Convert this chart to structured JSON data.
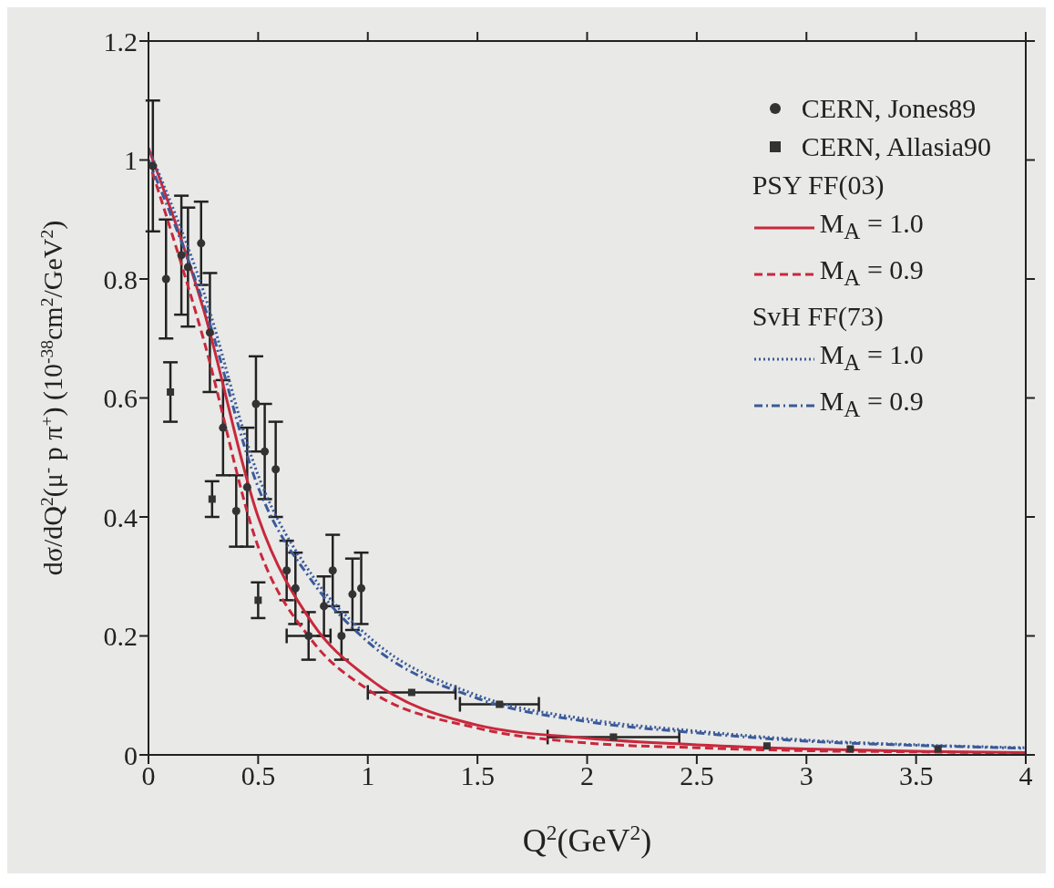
{
  "chart_data": {
    "type": "scatter",
    "xlabel": "Q$^{2}$(GeV$^{2}$)",
    "ylabel": "dσ/dQ$^{2}$(μ$^{-}$ p π$^{+}$) (10$^{-38}$cm$^{2}$/GeV$^{2}$)",
    "xlim": [
      0,
      4
    ],
    "xticks": [
      0,
      0.5,
      1,
      1.5,
      2,
      2.5,
      3,
      3.5,
      4
    ],
    "ylim": [
      0,
      1.2
    ],
    "yticks": [
      0,
      0.2,
      0.4,
      0.6,
      0.8,
      1,
      1.2
    ],
    "legend": "top right",
    "annotations": [
      "PSY FF(03)",
      "SvH FF(73)"
    ],
    "series": [
      {
        "name": "CERN, Jones89",
        "marker": "circle",
        "color": "#333333",
        "x": [
          0.02,
          0.08,
          0.15,
          0.18,
          0.24,
          0.28,
          0.34,
          0.4,
          0.45,
          0.49,
          0.53,
          0.58,
          0.63,
          0.67,
          0.73,
          0.8,
          0.84,
          0.88,
          0.93,
          0.97
        ],
        "values": [
          0.99,
          0.8,
          0.84,
          0.82,
          0.86,
          0.71,
          0.55,
          0.41,
          0.45,
          0.59,
          0.51,
          0.48,
          0.31,
          0.28,
          0.2,
          0.25,
          0.31,
          0.2,
          0.27,
          0.28
        ],
        "errors": [
          0.11,
          0.1,
          0.1,
          0.1,
          0.07,
          0.1,
          0.08,
          0.06,
          0.1,
          0.08,
          0.08,
          0.08,
          0.05,
          0.06,
          0.04,
          0.05,
          0.06,
          0.04,
          0.06,
          0.06
        ],
        "xerrors": [
          null,
          null,
          null,
          null,
          null,
          null,
          null,
          null,
          null,
          null,
          null,
          null,
          null,
          null,
          0.1,
          null,
          null,
          null,
          null,
          null
        ]
      },
      {
        "name": "CERN, Allasia90",
        "marker": "square",
        "color": "#333333",
        "x": [
          0.1,
          0.29,
          0.5,
          1.2,
          1.6,
          2.12,
          2.82,
          3.2,
          3.6
        ],
        "values": [
          0.61,
          0.43,
          0.26,
          0.105,
          0.085,
          0.03,
          0.015,
          0.01,
          0.01
        ],
        "errors": [
          0.05,
          0.03,
          0.03,
          null,
          null,
          null,
          null,
          null,
          null
        ],
        "xerrors": [
          null,
          null,
          null,
          0.2,
          0.18,
          0.3,
          null,
          null,
          null
        ]
      },
      {
        "name": "M$_{A}$ = 1.0",
        "type": "line",
        "line_style": "solid",
        "color": "#c8283c",
        "x": [
          0,
          0.25,
          0.5,
          0.75,
          1,
          1.5,
          2,
          2.5,
          3,
          3.5,
          4
        ],
        "values": [
          1.02,
          0.75,
          0.4,
          0.22,
          0.13,
          0.05,
          0.028,
          0.017,
          0.01,
          0.006,
          0.004
        ]
      },
      {
        "name": "M$_{A}$ = 0.9",
        "type": "line",
        "line_style": "dashed",
        "color": "#c8283c",
        "x": [
          0,
          0.25,
          0.5,
          0.75,
          1,
          1.5,
          2,
          2.5,
          3,
          3.5,
          4
        ],
        "values": [
          1.0,
          0.7,
          0.35,
          0.19,
          0.11,
          0.045,
          0.02,
          0.012,
          0.007,
          0.005,
          0.003
        ]
      },
      {
        "name": "M$_{A}$ = 1.0",
        "type": "line",
        "line_style": "dotted",
        "color": "#3a5a9a",
        "x": [
          0,
          0.25,
          0.5,
          0.75,
          1,
          1.5,
          2,
          2.5,
          3,
          3.5,
          4
        ],
        "values": [
          1.02,
          0.78,
          0.47,
          0.3,
          0.2,
          0.1,
          0.06,
          0.04,
          0.025,
          0.017,
          0.012
        ]
      },
      {
        "name": "M$_{A}$ = 0.9",
        "type": "line",
        "line_style": "dashdot",
        "color": "#3a5a9a",
        "x": [
          0,
          0.25,
          0.5,
          0.75,
          1,
          1.5,
          2,
          2.5,
          3,
          3.5,
          4
        ],
        "values": [
          1.0,
          0.76,
          0.45,
          0.29,
          0.19,
          0.095,
          0.056,
          0.037,
          0.023,
          0.016,
          0.011
        ]
      }
    ]
  }
}
